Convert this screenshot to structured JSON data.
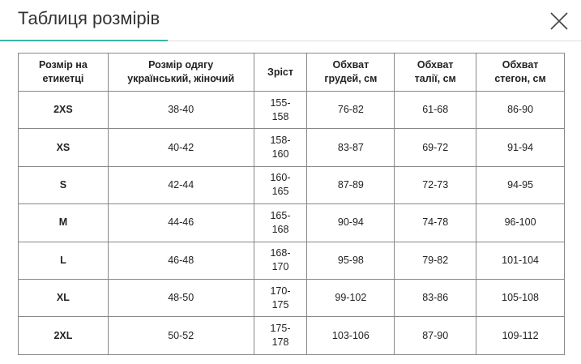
{
  "header": {
    "title": "Таблиця розмірів"
  },
  "table": {
    "columns": [
      [
        "Розмір на",
        "етикетці"
      ],
      [
        "Розмір одягу",
        "український, жіночий"
      ],
      [
        "Зріст"
      ],
      [
        "Обхват",
        "грудей, см"
      ],
      [
        "Обхват",
        "талії, см"
      ],
      [
        "Обхват",
        "стегон, см"
      ]
    ],
    "rows": [
      [
        "2XS",
        "38-40",
        [
          "155-",
          "158"
        ],
        "76-82",
        "61-68",
        "86-90"
      ],
      [
        "XS",
        "40-42",
        [
          "158-",
          "160"
        ],
        "83-87",
        "69-72",
        "91-94"
      ],
      [
        "S",
        "42-44",
        [
          "160-",
          "165"
        ],
        "87-89",
        "72-73",
        "94-95"
      ],
      [
        "M",
        "44-46",
        [
          "165-",
          "168"
        ],
        "90-94",
        "74-78",
        "96-100"
      ],
      [
        "L",
        "46-48",
        [
          "168-",
          "170"
        ],
        "95-98",
        "79-82",
        "101-104"
      ],
      [
        "XL",
        "48-50",
        [
          "170-",
          "175"
        ],
        "99-102",
        "83-86",
        "105-108"
      ],
      [
        "2XL",
        "50-52",
        [
          "175-",
          "178"
        ],
        "103-106",
        "87-90",
        "109-112"
      ]
    ]
  }
}
